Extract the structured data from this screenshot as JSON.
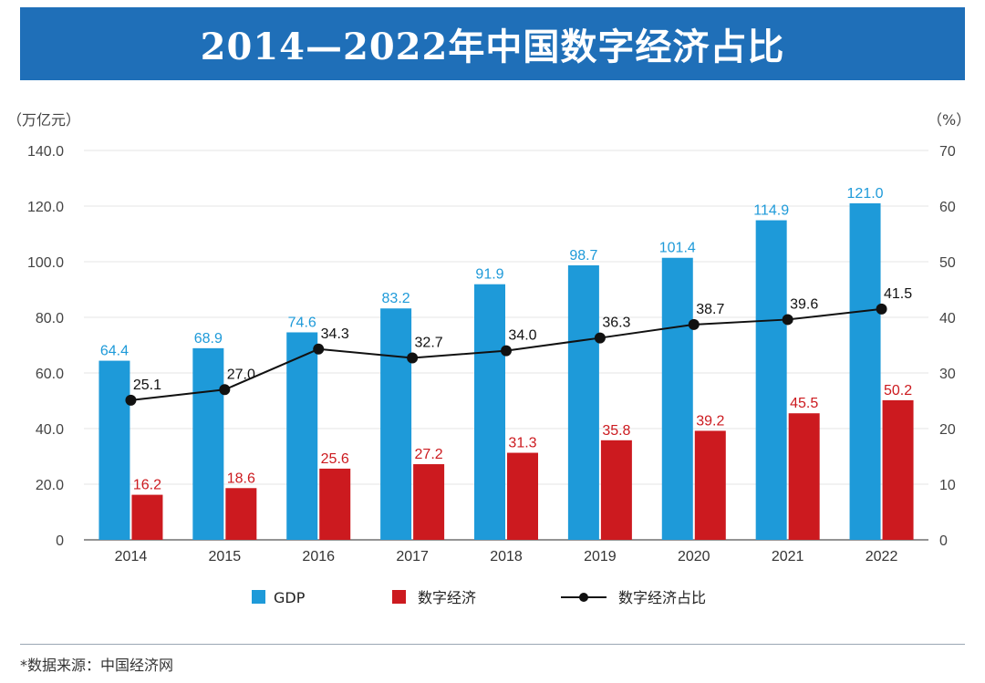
{
  "chart_data": {
    "type": "bar",
    "title": "2014—2022年中国数字经济占比",
    "categories": [
      "2014",
      "2015",
      "2016",
      "2017",
      "2018",
      "2019",
      "2020",
      "2021",
      "2022"
    ],
    "series": [
      {
        "name": "GDP",
        "type": "bar",
        "axis": "left",
        "color": "#1e9ad9",
        "values": [
          64.4,
          68.9,
          74.6,
          83.2,
          91.9,
          98.7,
          101.4,
          114.9,
          121.0
        ],
        "labels": [
          "64.4",
          "68.9",
          "74.6",
          "83.2",
          "91.9",
          "98.7",
          "101.4",
          "114.9",
          "121.0"
        ]
      },
      {
        "name": "数字经济",
        "type": "bar",
        "axis": "right_none",
        "color": "#cc1a1f",
        "values": [
          16.2,
          18.6,
          25.6,
          27.2,
          31.3,
          35.8,
          39.2,
          45.5,
          50.2
        ],
        "labels": [
          "16.2",
          "18.6",
          "25.6",
          "27.2",
          "31.3",
          "35.8",
          "39.2",
          "45.5",
          "50.2"
        ]
      },
      {
        "name": "数字经济占比",
        "type": "line",
        "axis": "right",
        "color": "#111111",
        "values": [
          25.1,
          27.0,
          34.3,
          32.7,
          34.0,
          36.3,
          38.7,
          39.6,
          41.5
        ],
        "labels": [
          "25.1",
          "27.0",
          "34.3",
          "32.7",
          "34.0",
          "36.3",
          "38.7",
          "39.6",
          "41.5"
        ]
      }
    ],
    "y_left": {
      "unit_label": "（万亿元）",
      "range": [
        0,
        140
      ],
      "ticks": [
        "0",
        "20.0",
        "40.0",
        "60.0",
        "80.0",
        "100.0",
        "120.0",
        "140.0"
      ]
    },
    "y_right": {
      "unit_label": "（%）",
      "range": [
        0,
        70
      ],
      "ticks": [
        "0",
        "10",
        "20",
        "30",
        "40",
        "50",
        "60",
        "70"
      ]
    },
    "grid": true,
    "legend_position": "bottom"
  },
  "source_note": "*数据来源：中国经济网"
}
